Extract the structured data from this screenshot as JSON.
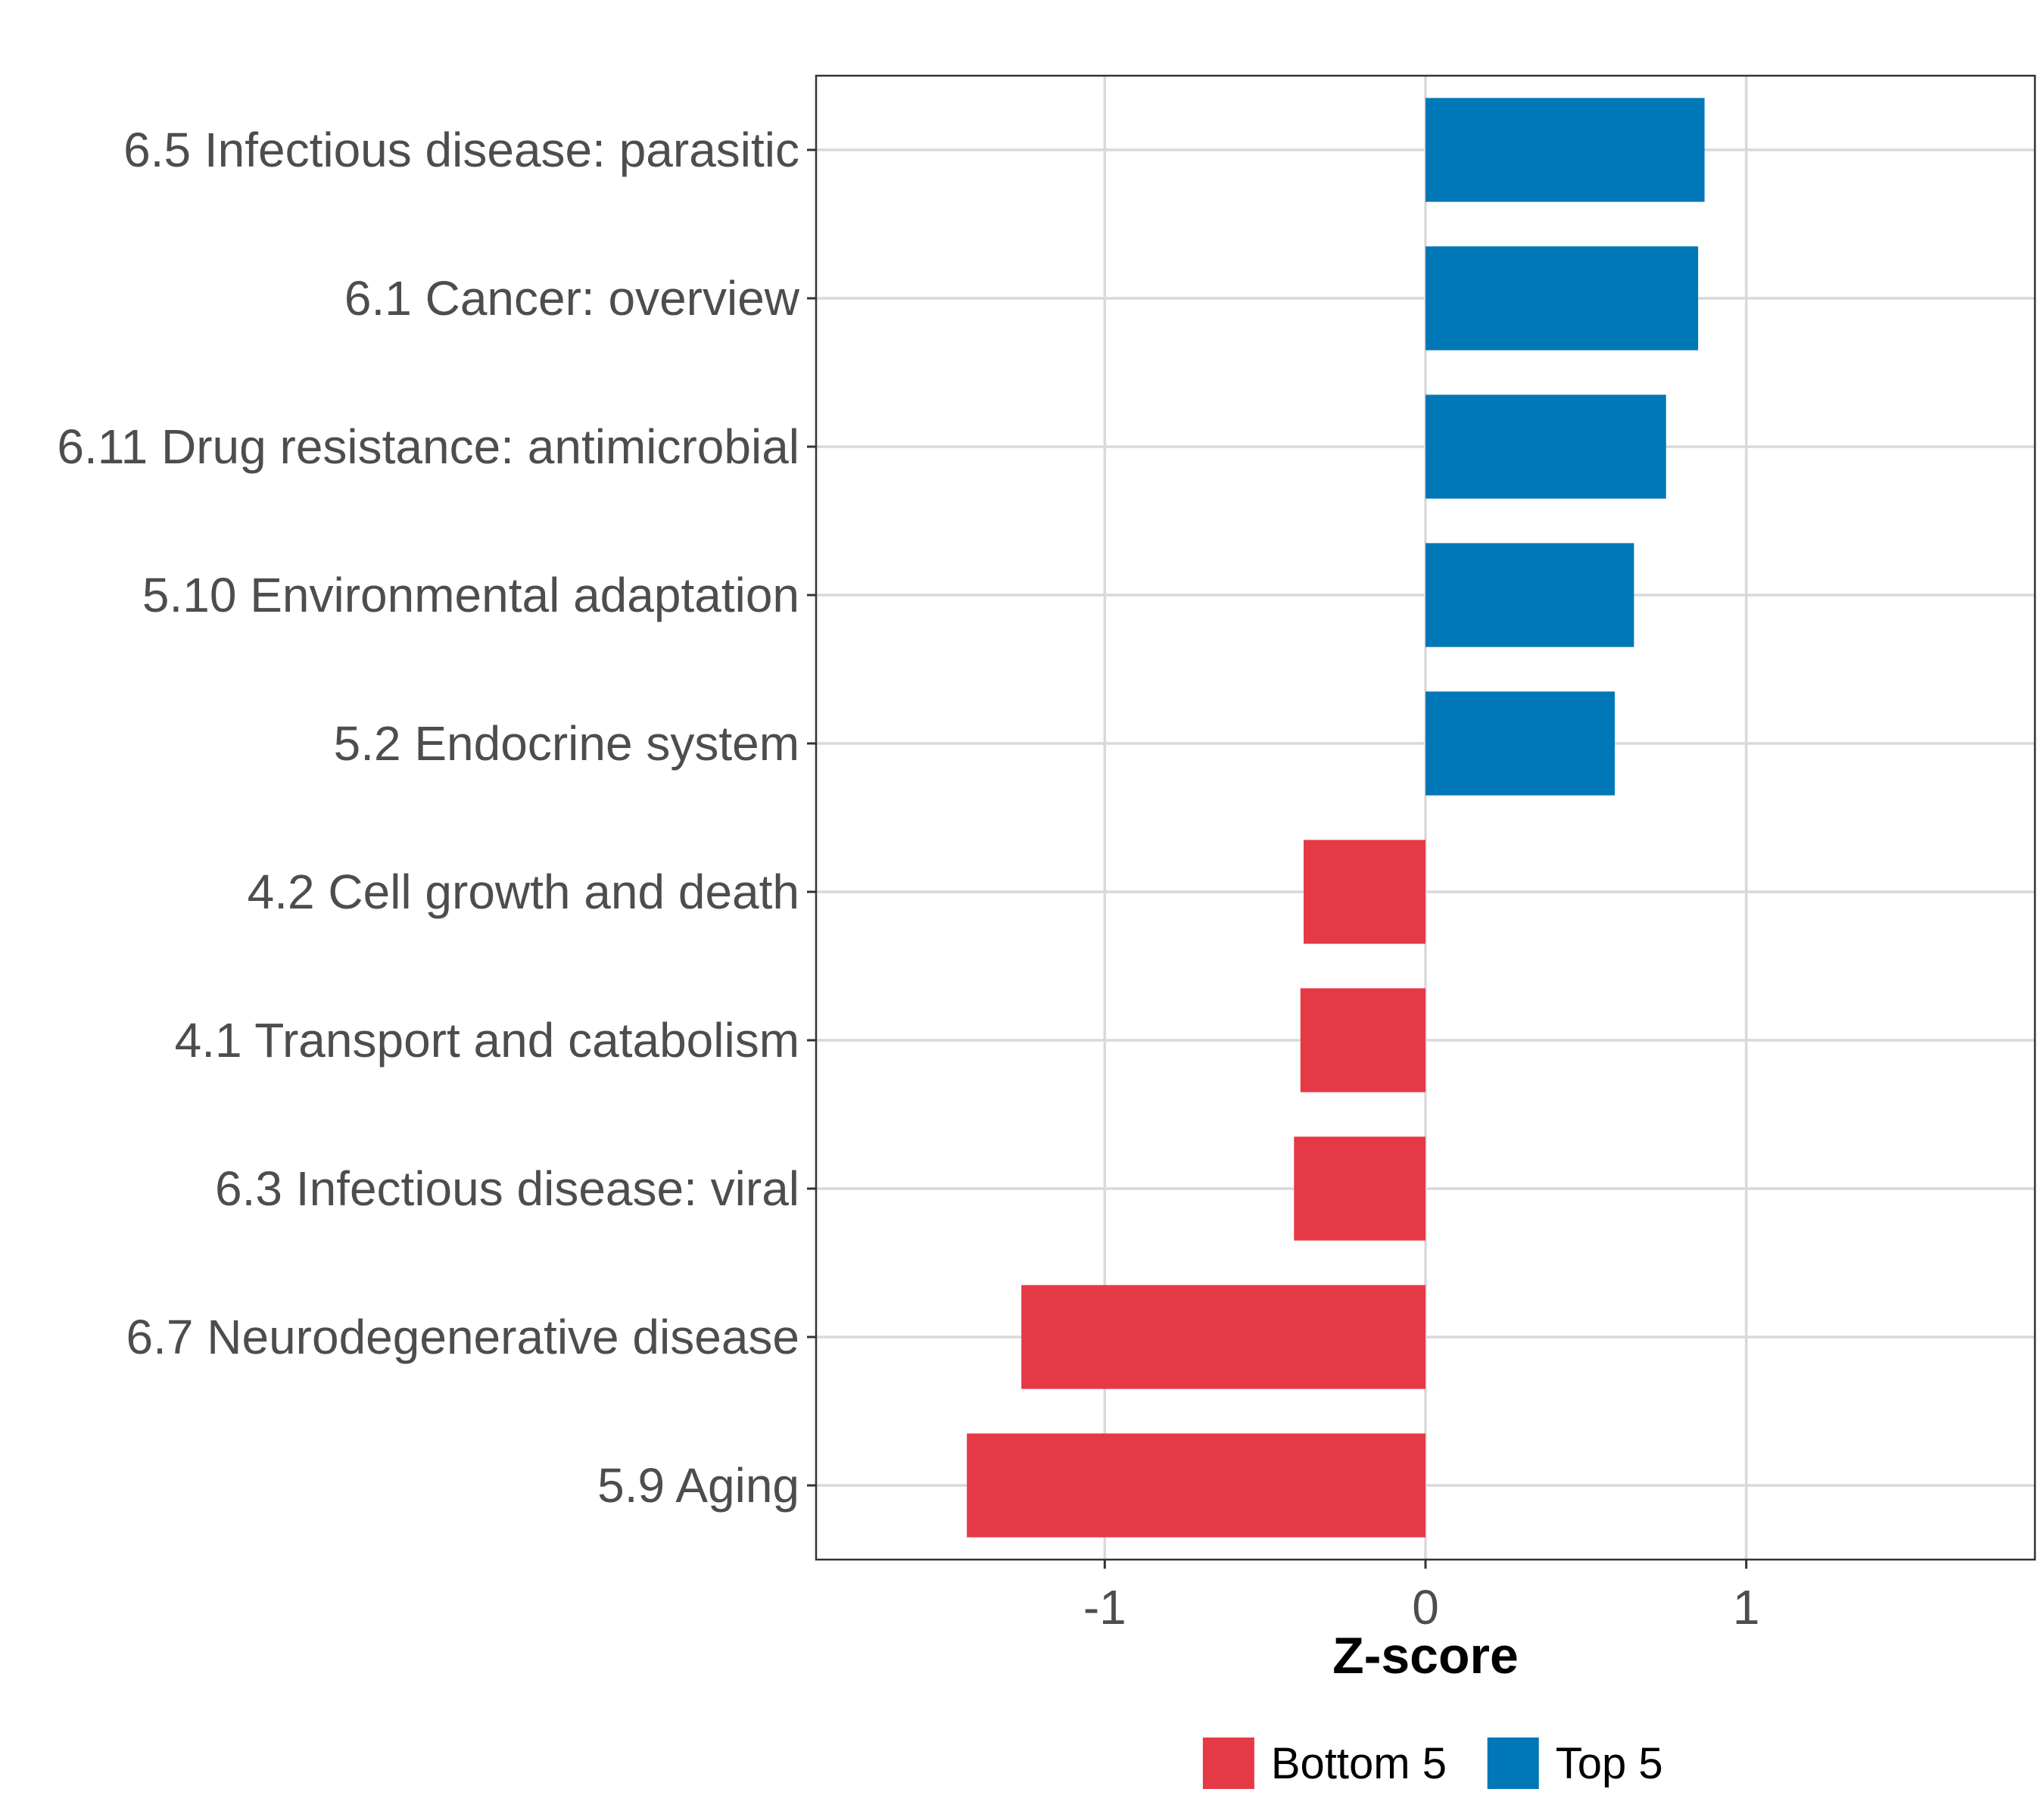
{
  "chart_data": {
    "type": "bar",
    "orientation": "horizontal",
    "title": "",
    "xlabel": "Z-score",
    "ylabel": "",
    "xlim": [
      -1.9,
      1.9
    ],
    "xticks": [
      -1,
      0,
      1
    ],
    "xtick_labels": [
      "-1",
      "0",
      "1"
    ],
    "grid": true,
    "legend_position": "bottom",
    "categories": [
      "6.5 Infectious disease: parasitic",
      "6.1 Cancer: overview",
      "6.11 Drug resistance: antimicrobial",
      "5.10 Environmental adaptation",
      "5.2 Endocrine system",
      "4.2 Cell growth and death",
      "4.1 Transport and catabolism",
      "6.3 Infectious disease: viral",
      "6.7 Neurodegenerative disease",
      "5.9 Aging"
    ],
    "values": [
      0.87,
      0.85,
      0.75,
      0.65,
      0.59,
      -0.38,
      -0.39,
      -0.41,
      -1.26,
      -1.43
    ],
    "groups": [
      "Top 5",
      "Top 5",
      "Top 5",
      "Top 5",
      "Top 5",
      "Bottom 5",
      "Bottom 5",
      "Bottom 5",
      "Bottom 5",
      "Bottom 5"
    ],
    "legend": [
      {
        "name": "Bottom 5",
        "color": "#e63946"
      },
      {
        "name": "Top 5",
        "color": "#0077b6"
      }
    ]
  }
}
